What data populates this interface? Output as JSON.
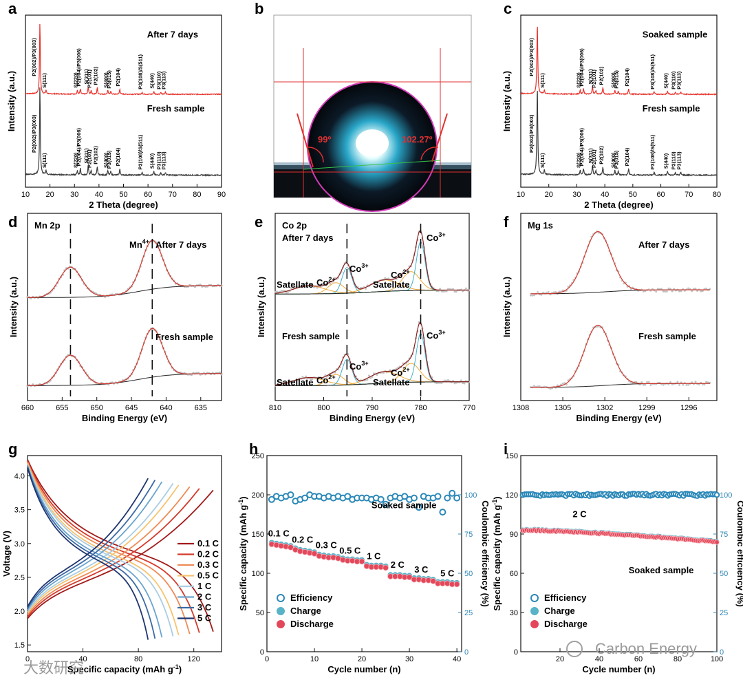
{
  "chart_data": [
    {
      "panel": "a",
      "type": "line",
      "xlabel": "2 Theta (degree)",
      "ylabel": "Intensity (a.u.)",
      "xlim": [
        10,
        90
      ],
      "xticks": [
        10,
        20,
        30,
        40,
        50,
        60,
        70,
        80,
        90
      ],
      "series": [
        {
          "name": "After 7 days",
          "color": "#e8312b"
        },
        {
          "name": "Fresh sample",
          "color": "#3a3a3a"
        }
      ],
      "peaks": [
        {
          "label": "P2(002)/P3(003)",
          "x": 15.9
        },
        {
          "label": "S(111)",
          "x": 18.4
        },
        {
          "label": "S(220)",
          "x": 31.2
        },
        {
          "label": "P2(004)/P3(006)",
          "x": 32.4
        },
        {
          "label": "S(311)",
          "x": 35.6
        },
        {
          "label": "P2(101)",
          "x": 36.8
        },
        {
          "label": "P2(102)",
          "x": 39.3
        },
        {
          "label": "S(400)",
          "x": 43.6
        },
        {
          "label": "P3(015)",
          "x": 44.8
        },
        {
          "label": "P2(104)",
          "x": 48.5
        },
        {
          "label": "P3(108)/S(511)",
          "x": 57.6
        },
        {
          "label": "S(440)",
          "x": 62.4
        },
        {
          "label": "P3(110)",
          "x": 65.2
        },
        {
          "label": "P3(113)",
          "x": 67.1
        }
      ]
    },
    {
      "panel": "b",
      "type": "image",
      "annotations": [
        "99º",
        "102.27º"
      ]
    },
    {
      "panel": "c",
      "type": "line",
      "xlabel": "2 Theta (degree)",
      "ylabel": "Intensity (a.u.)",
      "xlim": [
        10,
        80
      ],
      "xticks": [
        10,
        20,
        30,
        40,
        50,
        60,
        70,
        80
      ],
      "series": [
        {
          "name": "Soaked sample",
          "color": "#e8312b"
        },
        {
          "name": "Fresh sample",
          "color": "#3a3a3a"
        }
      ]
    },
    {
      "panel": "d",
      "type": "line",
      "title": "Mn 2p",
      "xlabel": "Binding Energy (eV)",
      "ylabel": "Intensity (a.u.)",
      "xlim": [
        660,
        632
      ],
      "xticks": [
        660,
        655,
        650,
        645,
        640,
        635
      ],
      "peak_label": "Mn4+",
      "peak_positions": [
        653.8,
        642.0
      ],
      "series": [
        {
          "name": "After 7 days"
        },
        {
          "name": "Fresh sample"
        }
      ]
    },
    {
      "panel": "e",
      "type": "line",
      "title": "Co 2p",
      "xlabel": "Binding Energy (eV)",
      "ylabel": "Intensity (a.u.)",
      "xlim": [
        810,
        770
      ],
      "xticks": [
        810,
        800,
        790,
        780,
        770
      ],
      "peak_positions": [
        795.2,
        780.0
      ],
      "labels": [
        "Satellate",
        "Co2+",
        "Co3+"
      ],
      "series": [
        {
          "name": "After 7 days"
        },
        {
          "name": "Fresh sample"
        }
      ]
    },
    {
      "panel": "f",
      "type": "line",
      "title": "Mg 1s",
      "xlabel": "Binding Energy (eV)",
      "ylabel": "Intensity (a.u.)",
      "xlim": [
        1308,
        1294
      ],
      "xticks": [
        1308,
        1305,
        1302,
        1299,
        1296
      ],
      "peak_position": 1302.5,
      "series": [
        {
          "name": "After 7 days"
        },
        {
          "name": "Fresh sample"
        }
      ]
    },
    {
      "panel": "g",
      "type": "line",
      "xlabel": "Specific capacity (mAh g-1)",
      "ylabel": "Voltage (V)",
      "xlim": [
        0,
        140
      ],
      "ylim": [
        1.4,
        4.3
      ],
      "xticks": [
        0,
        40,
        80,
        120
      ],
      "yticks": [
        1.5,
        2.0,
        2.5,
        3.0,
        3.5,
        4.0
      ],
      "series": [
        {
          "name": "0.1 C",
          "color": "#a11a1a",
          "capacity": 134
        },
        {
          "name": "0.2 C",
          "color": "#d43a2a",
          "capacity": 124
        },
        {
          "name": "0.3 C",
          "color": "#ef8a55",
          "capacity": 117
        },
        {
          "name": "0.5 C",
          "color": "#f6c370",
          "capacity": 109
        },
        {
          "name": "1 C",
          "color": "#a9cde3",
          "capacity": 105
        },
        {
          "name": "2 C",
          "color": "#6aa4cf",
          "capacity": 97
        },
        {
          "name": "3 C",
          "color": "#3b69a5",
          "capacity": 92
        },
        {
          "name": "5 C",
          "color": "#1e3570",
          "capacity": 87
        }
      ]
    },
    {
      "panel": "h",
      "type": "scatter",
      "annotation": "Soaked sample",
      "xlabel": "Cycle number (n)",
      "ylabel": "Specific capacity (mAh g-1)",
      "y2label": "Coulombic efficiency (%)",
      "xlim": [
        0,
        41
      ],
      "ylim": [
        0,
        250
      ],
      "y2lim": [
        0,
        125
      ],
      "xticks": [
        0,
        10,
        20,
        30,
        40
      ],
      "yticks": [
        0,
        50,
        100,
        150,
        200,
        250
      ],
      "y2ticks": [
        0,
        25,
        50,
        75,
        100
      ],
      "legend": [
        "Efficiency",
        "Charge",
        "Discharge"
      ],
      "legend_position": "lower-left",
      "rate_labels": [
        {
          "label": "0.1 C",
          "x": 2.5,
          "y": 147
        },
        {
          "label": "0.2 C",
          "x": 7.5,
          "y": 139
        },
        {
          "label": "0.3 C",
          "x": 12.5,
          "y": 132
        },
        {
          "label": "0.5 C",
          "x": 17.5,
          "y": 125
        },
        {
          "label": "1 C",
          "x": 22.5,
          "y": 118
        },
        {
          "label": "2 C",
          "x": 27.5,
          "y": 107
        },
        {
          "label": "3 C",
          "x": 32.5,
          "y": 101
        },
        {
          "label": "5 C",
          "x": 38,
          "y": 96
        }
      ],
      "x": [
        1,
        2,
        3,
        4,
        5,
        6,
        7,
        8,
        9,
        10,
        11,
        12,
        13,
        14,
        15,
        16,
        17,
        18,
        19,
        20,
        21,
        22,
        23,
        24,
        25,
        26,
        27,
        28,
        29,
        30,
        31,
        32,
        33,
        34,
        35,
        36,
        37,
        38,
        39,
        40
      ],
      "discharge": [
        137,
        136,
        135,
        134,
        133,
        130,
        128,
        127,
        126,
        125,
        122,
        121,
        120,
        120,
        119,
        117,
        116,
        116,
        115,
        115,
        109,
        108,
        108,
        108,
        107,
        96,
        96,
        96,
        95,
        95,
        92,
        92,
        91,
        91,
        90,
        87,
        87,
        87,
        86,
        86
      ],
      "charge": [
        139,
        138,
        137,
        136,
        135,
        132,
        130,
        129,
        128,
        127,
        124,
        123,
        122,
        122,
        121,
        119,
        118,
        118,
        117,
        117,
        111,
        110,
        110,
        110,
        109,
        98,
        98,
        98,
        97,
        97,
        94,
        94,
        93,
        93,
        92,
        89,
        89,
        89,
        88,
        88
      ],
      "efficiency": [
        97,
        99,
        98,
        99,
        100,
        96,
        97,
        98,
        100,
        99,
        99,
        98,
        99,
        98,
        99,
        98,
        99,
        97,
        98,
        98,
        98,
        97,
        98,
        97,
        94,
        98,
        99,
        98,
        99,
        97,
        98,
        92,
        99,
        98,
        98,
        99,
        89,
        98,
        101,
        98
      ]
    },
    {
      "panel": "i",
      "type": "scatter",
      "annotation": "Soaked sample",
      "rate_label": "2 C",
      "xlabel": "Cycle number (n)",
      "ylabel": "Specific capacity (mAh g-1)",
      "y2label": "Coulombic efficiency (%)",
      "xlim": [
        0,
        100
      ],
      "ylim": [
        0,
        150
      ],
      "y2lim": [
        0,
        125
      ],
      "xticks": [
        20,
        40,
        60,
        80,
        100
      ],
      "yticks": [
        0,
        30,
        60,
        90,
        120,
        150
      ],
      "y2ticks": [
        0,
        25,
        50,
        75,
        100
      ],
      "legend": [
        "Efficiency",
        "Charge",
        "Discharge"
      ],
      "legend_position": "lower-left",
      "discharge_start": 93,
      "discharge_end": 84,
      "efficiency_mean": 100
    }
  ],
  "watermark": {
    "text": "Carbon Energy",
    "left_text": "大数研究"
  }
}
